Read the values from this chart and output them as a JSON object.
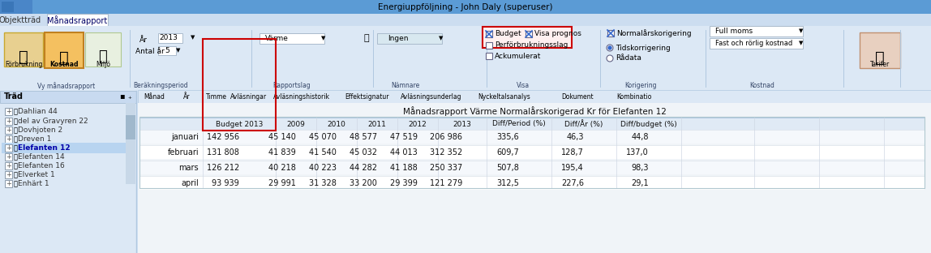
{
  "title_bar": "Energiuppföljning - John Daly (superuser)",
  "tab1": "Objektträd",
  "tab2": "Månadsrapport",
  "btn_forbrukning": "Förbrukning",
  "btn_kostnad": "Kostnad",
  "btn_miljo": "Miljö",
  "label_ar": "År",
  "value_ar": "2013",
  "label_antal_ar": "Antal år",
  "value_antal_ar": "5",
  "dropdown_varme": "Värme",
  "dropdown_ingen": "Ingen",
  "checkbox_budget": "Budget",
  "checkbox_visa_prognos": "Visa prognos",
  "checkbox_per_forbrukningsslag": "Perförbrukningsslag",
  "checkbox_ackumulerat": "Ackumulerat",
  "checkbox_normalarskorrigering": "Normalårskorigering",
  "radio_tidskorrigering": "Tidskorrigering",
  "radio_radata": "Rådata",
  "dropdown_full_moms": "Full moms",
  "dropdown_fast_rorlig": "Fast och rörlig kostnad",
  "btn_tarifer": "Tarifer",
  "toolbar_items": [
    "Månad",
    "År",
    "Timme",
    "Avläsningar",
    "Avläsningshistorik",
    "Effektsignatur",
    "Avläsningsunderlag",
    "Nyckeltalsanalys",
    "Dokument",
    "Kombinatio"
  ],
  "report_title": "Månadsrapport Värme Normalårskorigerad Kr för Elefanten 12",
  "table_headers": [
    "",
    "Budget 2013",
    "2009",
    "2010",
    "2011",
    "2012",
    "2013",
    "Diff/Period (%)",
    "Diff/År (%)",
    "Diff/budget (%)"
  ],
  "table_rows": [
    [
      "januari",
      "142 956",
      "45 140",
      "45 070",
      "48 577",
      "47 519",
      "206 986",
      "335,6",
      "46,3",
      "44,8"
    ],
    [
      "februari",
      "131 808",
      "41 839",
      "41 540",
      "45 032",
      "44 013",
      "312 352",
      "609,7",
      "128,7",
      "137,0"
    ],
    [
      "mars",
      "126 212",
      "40 218",
      "40 223",
      "44 282",
      "41 188",
      "250 337",
      "507,8",
      "195,4",
      "98,3"
    ],
    [
      "april",
      "93 939",
      "29 991",
      "31 328",
      "33 200",
      "29 399",
      "121 279",
      "312,5",
      "227,6",
      "29,1"
    ]
  ],
  "tree_items": [
    "Dahlian 44",
    "del av Gravyren 22",
    "Dovhjoten 2",
    "Dreven 1",
    "Elefanten 12",
    "Elefanten 14",
    "Elefanten 16",
    "Elverket 1",
    "Enhärt 1"
  ],
  "bg_color": "#d6e4f7",
  "toolbar_bg": "#e8f0f8",
  "title_bg": "#4a90d9",
  "table_header_bg": "#e8f0f8",
  "row_bg_even": "#f5f8fc",
  "row_bg_odd": "#ffffff",
  "highlight_color": "#ffd700",
  "red_box_color": "#cc0000",
  "selected_row_bg": "#b8d4f0",
  "tree_bg": "#dce8f5"
}
